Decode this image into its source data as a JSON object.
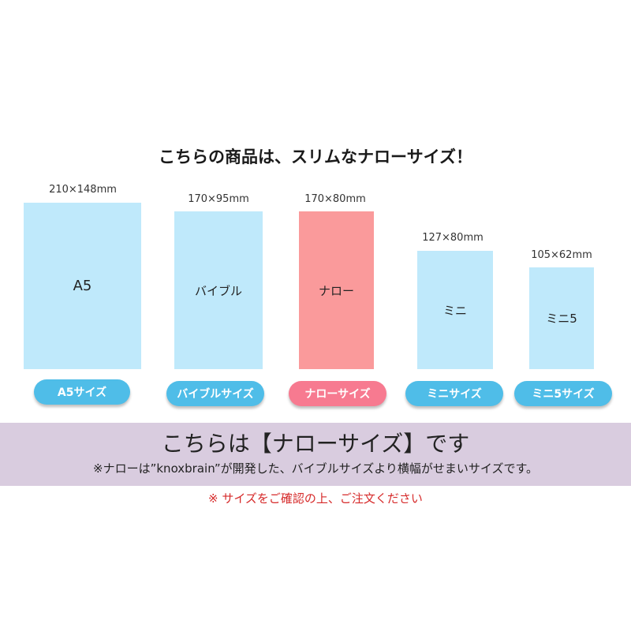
{
  "heading": "こちらの商品は、スリムなナローサイズ！",
  "sizes": [
    {
      "dimension": "210×148mm",
      "label": "A5",
      "button": "A5サイズ"
    },
    {
      "dimension": "170×95mm",
      "label": "バイブル",
      "button": "バイブルサイズ"
    },
    {
      "dimension": "170×80mm",
      "label": "ナロー",
      "button": "ナローサイズ"
    },
    {
      "dimension": "127×80mm",
      "label": "ミニ",
      "button": "ミニサイズ"
    },
    {
      "dimension": "105×62mm",
      "label": "ミニ5",
      "button": "ミニ5サイズ"
    }
  ],
  "band": {
    "title": "こちらは【ナローサイズ】です",
    "note": "※ナローは”knoxbrain”が開発した、バイブルサイズより横幅がせまいサイズです。"
  },
  "notice": "※ サイズをご確認の上、ご注文ください",
  "colors": {
    "size_rect": "#bfe9fb",
    "size_rect_active": "#fa9a9b",
    "button": "#4fbde8",
    "button_active": "#f77a90",
    "band": "#d9ccdf",
    "notice": "#d62a2a"
  }
}
